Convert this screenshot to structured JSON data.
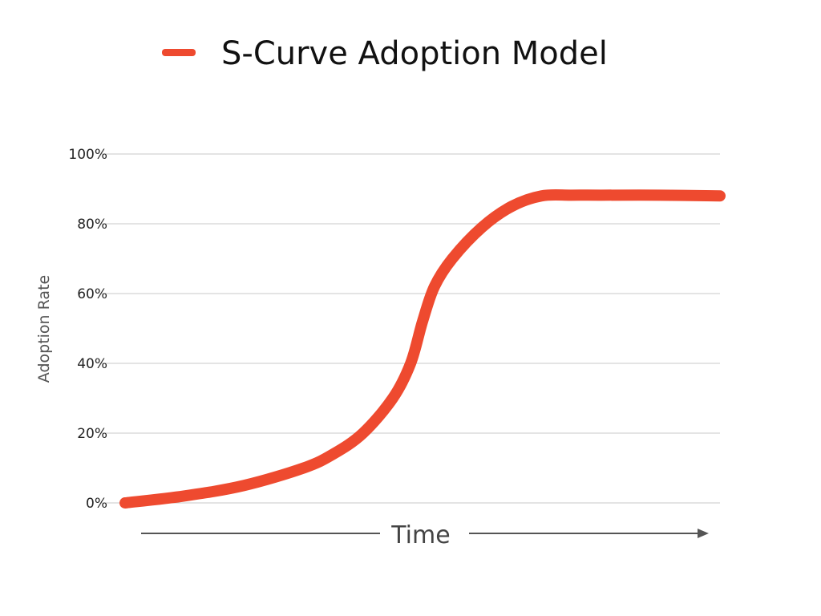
{
  "chart_data": {
    "type": "line",
    "title": "S-Curve Adoption Model",
    "xlabel": "Time",
    "ylabel": "Adoption Rate",
    "ylim": [
      0,
      100
    ],
    "yticks": [
      0,
      20,
      40,
      60,
      80,
      100
    ],
    "ytick_labels": [
      "0%",
      "20%",
      "40%",
      "60%",
      "80%",
      "100%"
    ],
    "xlim": [
      0,
      100
    ],
    "grid": true,
    "legend": "top",
    "series": [
      {
        "name": "S-Curve Adoption Model",
        "color": "#ee4a2f",
        "x": [
          0,
          10,
          20,
          30,
          35,
          40,
          45,
          48,
          50,
          52,
          55,
          60,
          65,
          70,
          75,
          80,
          90,
          100
        ],
        "y": [
          0,
          2,
          5,
          10,
          14,
          20,
          30,
          40,
          52,
          62,
          70,
          79,
          85,
          88,
          88.2,
          88.2,
          88.2,
          88
        ]
      }
    ]
  }
}
